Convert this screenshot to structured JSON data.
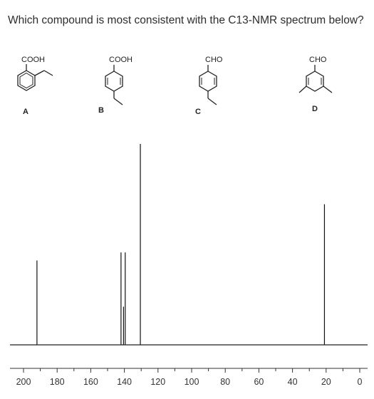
{
  "question": {
    "text": "Which compound is most consistent with the C13-NMR spectrum below?"
  },
  "compounds": [
    {
      "letter": "A",
      "group": "COOH"
    },
    {
      "letter": "B",
      "group": "COOH"
    },
    {
      "letter": "C",
      "group": "CHO"
    },
    {
      "letter": "D",
      "group": "CHO"
    }
  ],
  "chart_data": {
    "type": "bar",
    "title": "",
    "xlabel": "",
    "ylabel": "",
    "xlim": [
      200,
      0
    ],
    "x_reversed": true,
    "ylim": [
      0,
      1
    ],
    "grid": false,
    "x_ticks": [
      200,
      180,
      160,
      140,
      120,
      100,
      80,
      60,
      40,
      20,
      0
    ],
    "peaks": [
      {
        "ppm": 192,
        "intensity": 0.42
      },
      {
        "ppm": 142,
        "intensity": 0.46
      },
      {
        "ppm": 140.5,
        "intensity": 0.19
      },
      {
        "ppm": 139.5,
        "intensity": 0.46
      },
      {
        "ppm": 130.5,
        "intensity": 1.0
      },
      {
        "ppm": 21,
        "intensity": 0.7
      }
    ],
    "colors": {
      "peaks": "#111111",
      "baseline": "#222222",
      "axis": "#333333"
    }
  }
}
